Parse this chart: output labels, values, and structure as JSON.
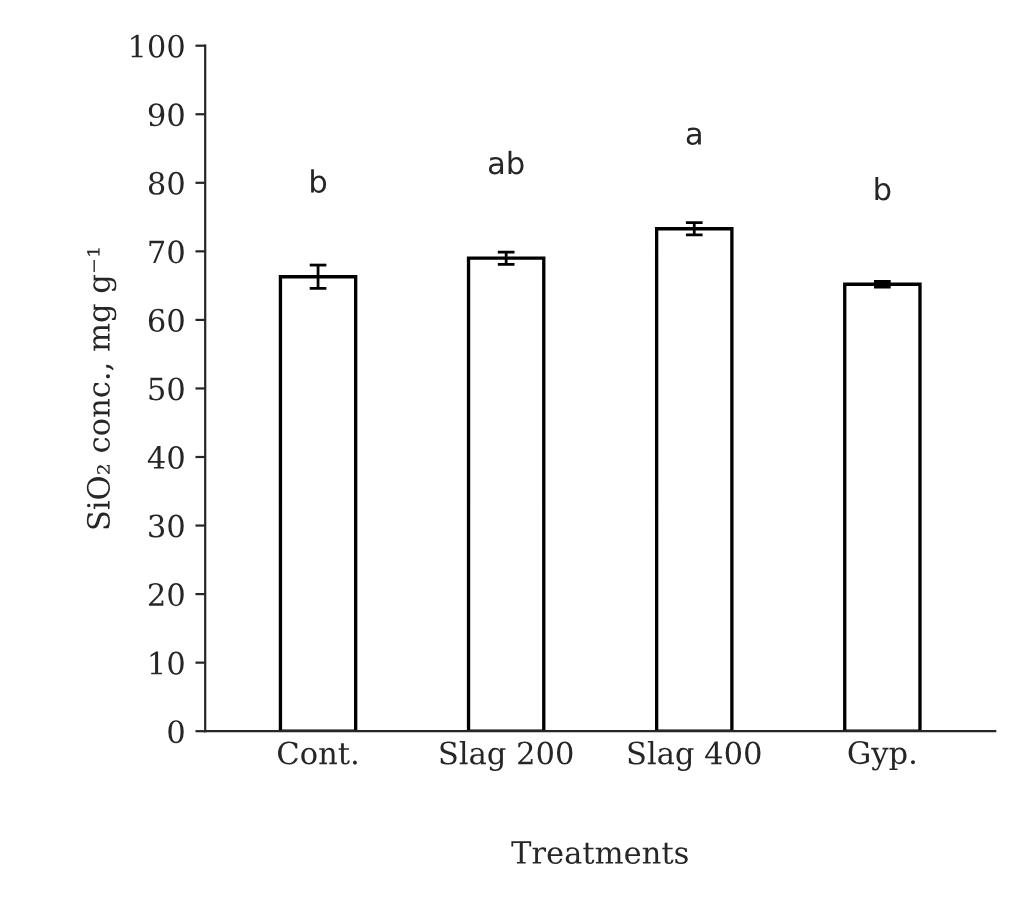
{
  "chart_data": {
    "type": "bar",
    "xlabel": "Treatments",
    "ylabel": "SiO₂ conc., mg g⁻¹",
    "categories": [
      "Cont.",
      "Slag 200",
      "Slag 400",
      "Gyp."
    ],
    "values": [
      66.3,
      69.0,
      73.3,
      65.2
    ],
    "errors": [
      1.7,
      0.9,
      0.9,
      0.4
    ],
    "color": "#ffffff",
    "ylim": [
      0,
      100
    ],
    "yticks": [
      0,
      10,
      20,
      30,
      40,
      50,
      60,
      70,
      80,
      90,
      100
    ],
    "grid": false,
    "legend": false,
    "annotations": [
      "b",
      "ab",
      "a",
      "b"
    ]
  }
}
